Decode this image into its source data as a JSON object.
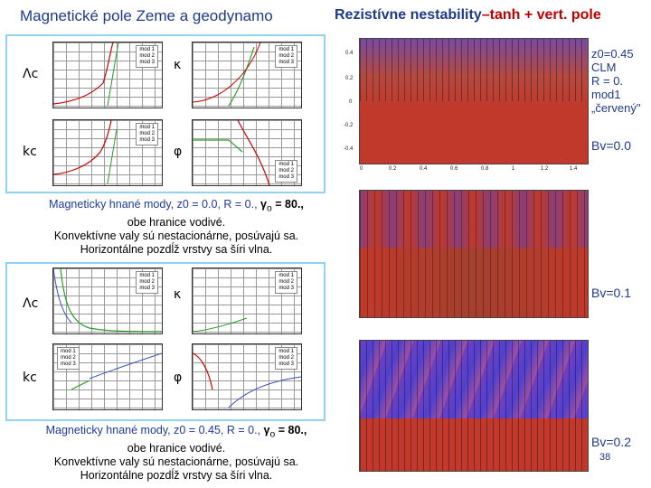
{
  "slide": {
    "title_left": "Magnetické pole Zeme a geodynamo",
    "title_right_a": "Rezistívne nestability",
    "title_right_dash": "–",
    "title_right_b": "tanh + vert. pole",
    "page_number": "38"
  },
  "panel_top": {
    "symbols": [
      "Λc",
      "κ",
      "kc",
      "φ"
    ],
    "legend_items": [
      "mod 1",
      "mod 2",
      "mod 3"
    ],
    "caption": {
      "line1_a": "Magneticky hnané mody, ",
      "line1_b": "z0 = 0.0",
      "line1_c": ", ",
      "line1_d": "R = 0.",
      "line1_e": ", ",
      "line1_f": "γ",
      "line1_g": "o",
      "line1_h": " = 80.,",
      "line2": "obe hranice vodivé.",
      "line3": "Konvektívne valy sú nestacionárne, posúvajú sa.",
      "line4": "Horizontálne pozdĺž vrstvy sa šíri vlna."
    }
  },
  "panel_bottom": {
    "symbols": [
      "Λc",
      "κ",
      "kc",
      "φ"
    ],
    "legend_items": [
      "mod 1",
      "mod 2",
      "mod 3"
    ],
    "caption": {
      "line1_a": "Magneticky hnané mody, ",
      "line1_b": "z0 = 0.45",
      "line1_c": ", ",
      "line1_d": "R = 0.",
      "line1_e": ", ",
      "line1_f": "γ",
      "line1_g": "o",
      "line1_h": " = 80.,",
      "line2": "obe hranice vodivé.",
      "line3": "Konvektívne valy sú nestacionárne, posúvajú sa.",
      "line4": "Horizontálne pozdĺž vrstvy sa šíri vlna."
    }
  },
  "right_annotations": {
    "block1": [
      "z0=0.45",
      "CLM",
      "R = 0.",
      "mod1",
      "„červený\""
    ],
    "bv1": "Bv=0.0",
    "bv2": "Bv=0.1",
    "bv3": "Bv=0.2"
  },
  "heatmaps": {
    "x_ticks": [
      "0",
      "0.2",
      "0.4",
      "0.6",
      "0.8",
      "1",
      "1.2",
      "1.4"
    ],
    "y_ticks": [
      "0.4",
      "0.2",
      "0",
      "-0.2",
      "-0.4"
    ]
  },
  "colors": {
    "title_blue": "#1f3a8a",
    "accent_red": "#c00000",
    "panel_border": "#8fd3f4",
    "heat_red": "#c0392b",
    "heat_purple": "#7b3fa0"
  }
}
